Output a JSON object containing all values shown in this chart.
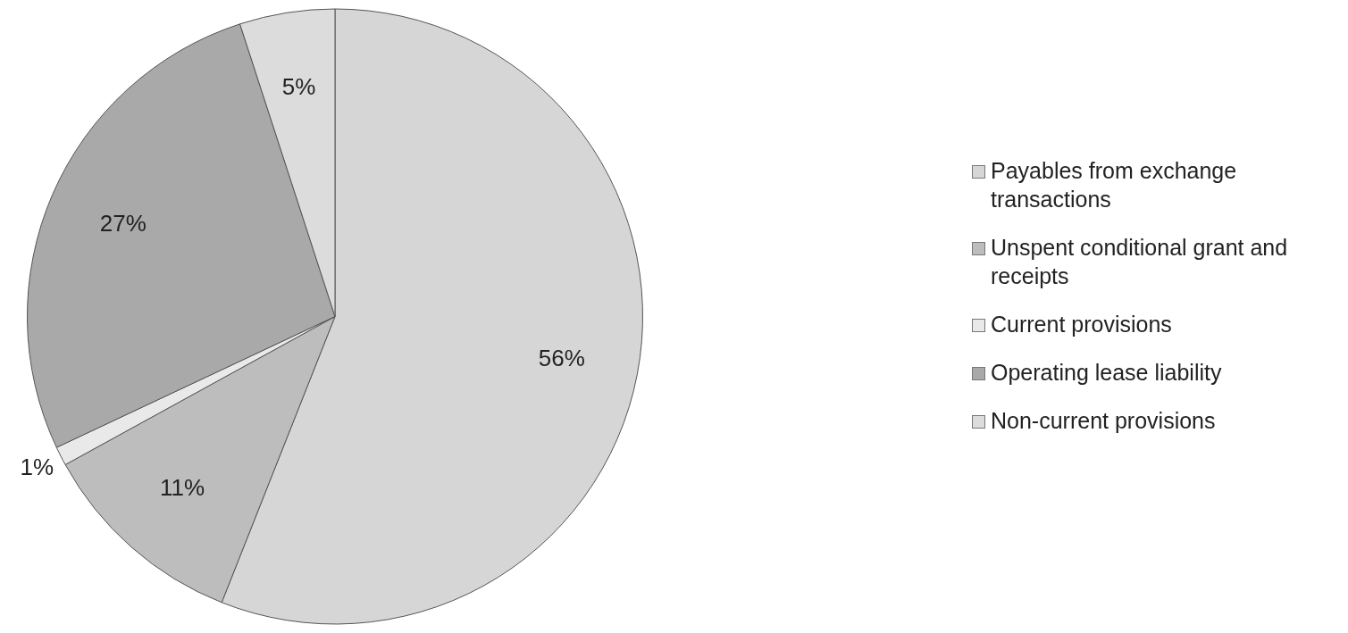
{
  "chart_data": {
    "type": "pie",
    "categories": [
      "Payables from exchange transactions",
      "Unspent conditional grant and receipts",
      "Current provisions",
      "Operating lease liability",
      "Non-current provisions"
    ],
    "values": [
      56,
      11,
      1,
      27,
      5
    ],
    "colors": [
      "#d6d6d6",
      "#bdbdbd",
      "#e9e9e9",
      "#a9a9a9",
      "#dcdcdc"
    ],
    "value_labels": [
      "56%",
      "11%",
      "1%",
      "27%",
      "5%"
    ],
    "legend": "right"
  }
}
